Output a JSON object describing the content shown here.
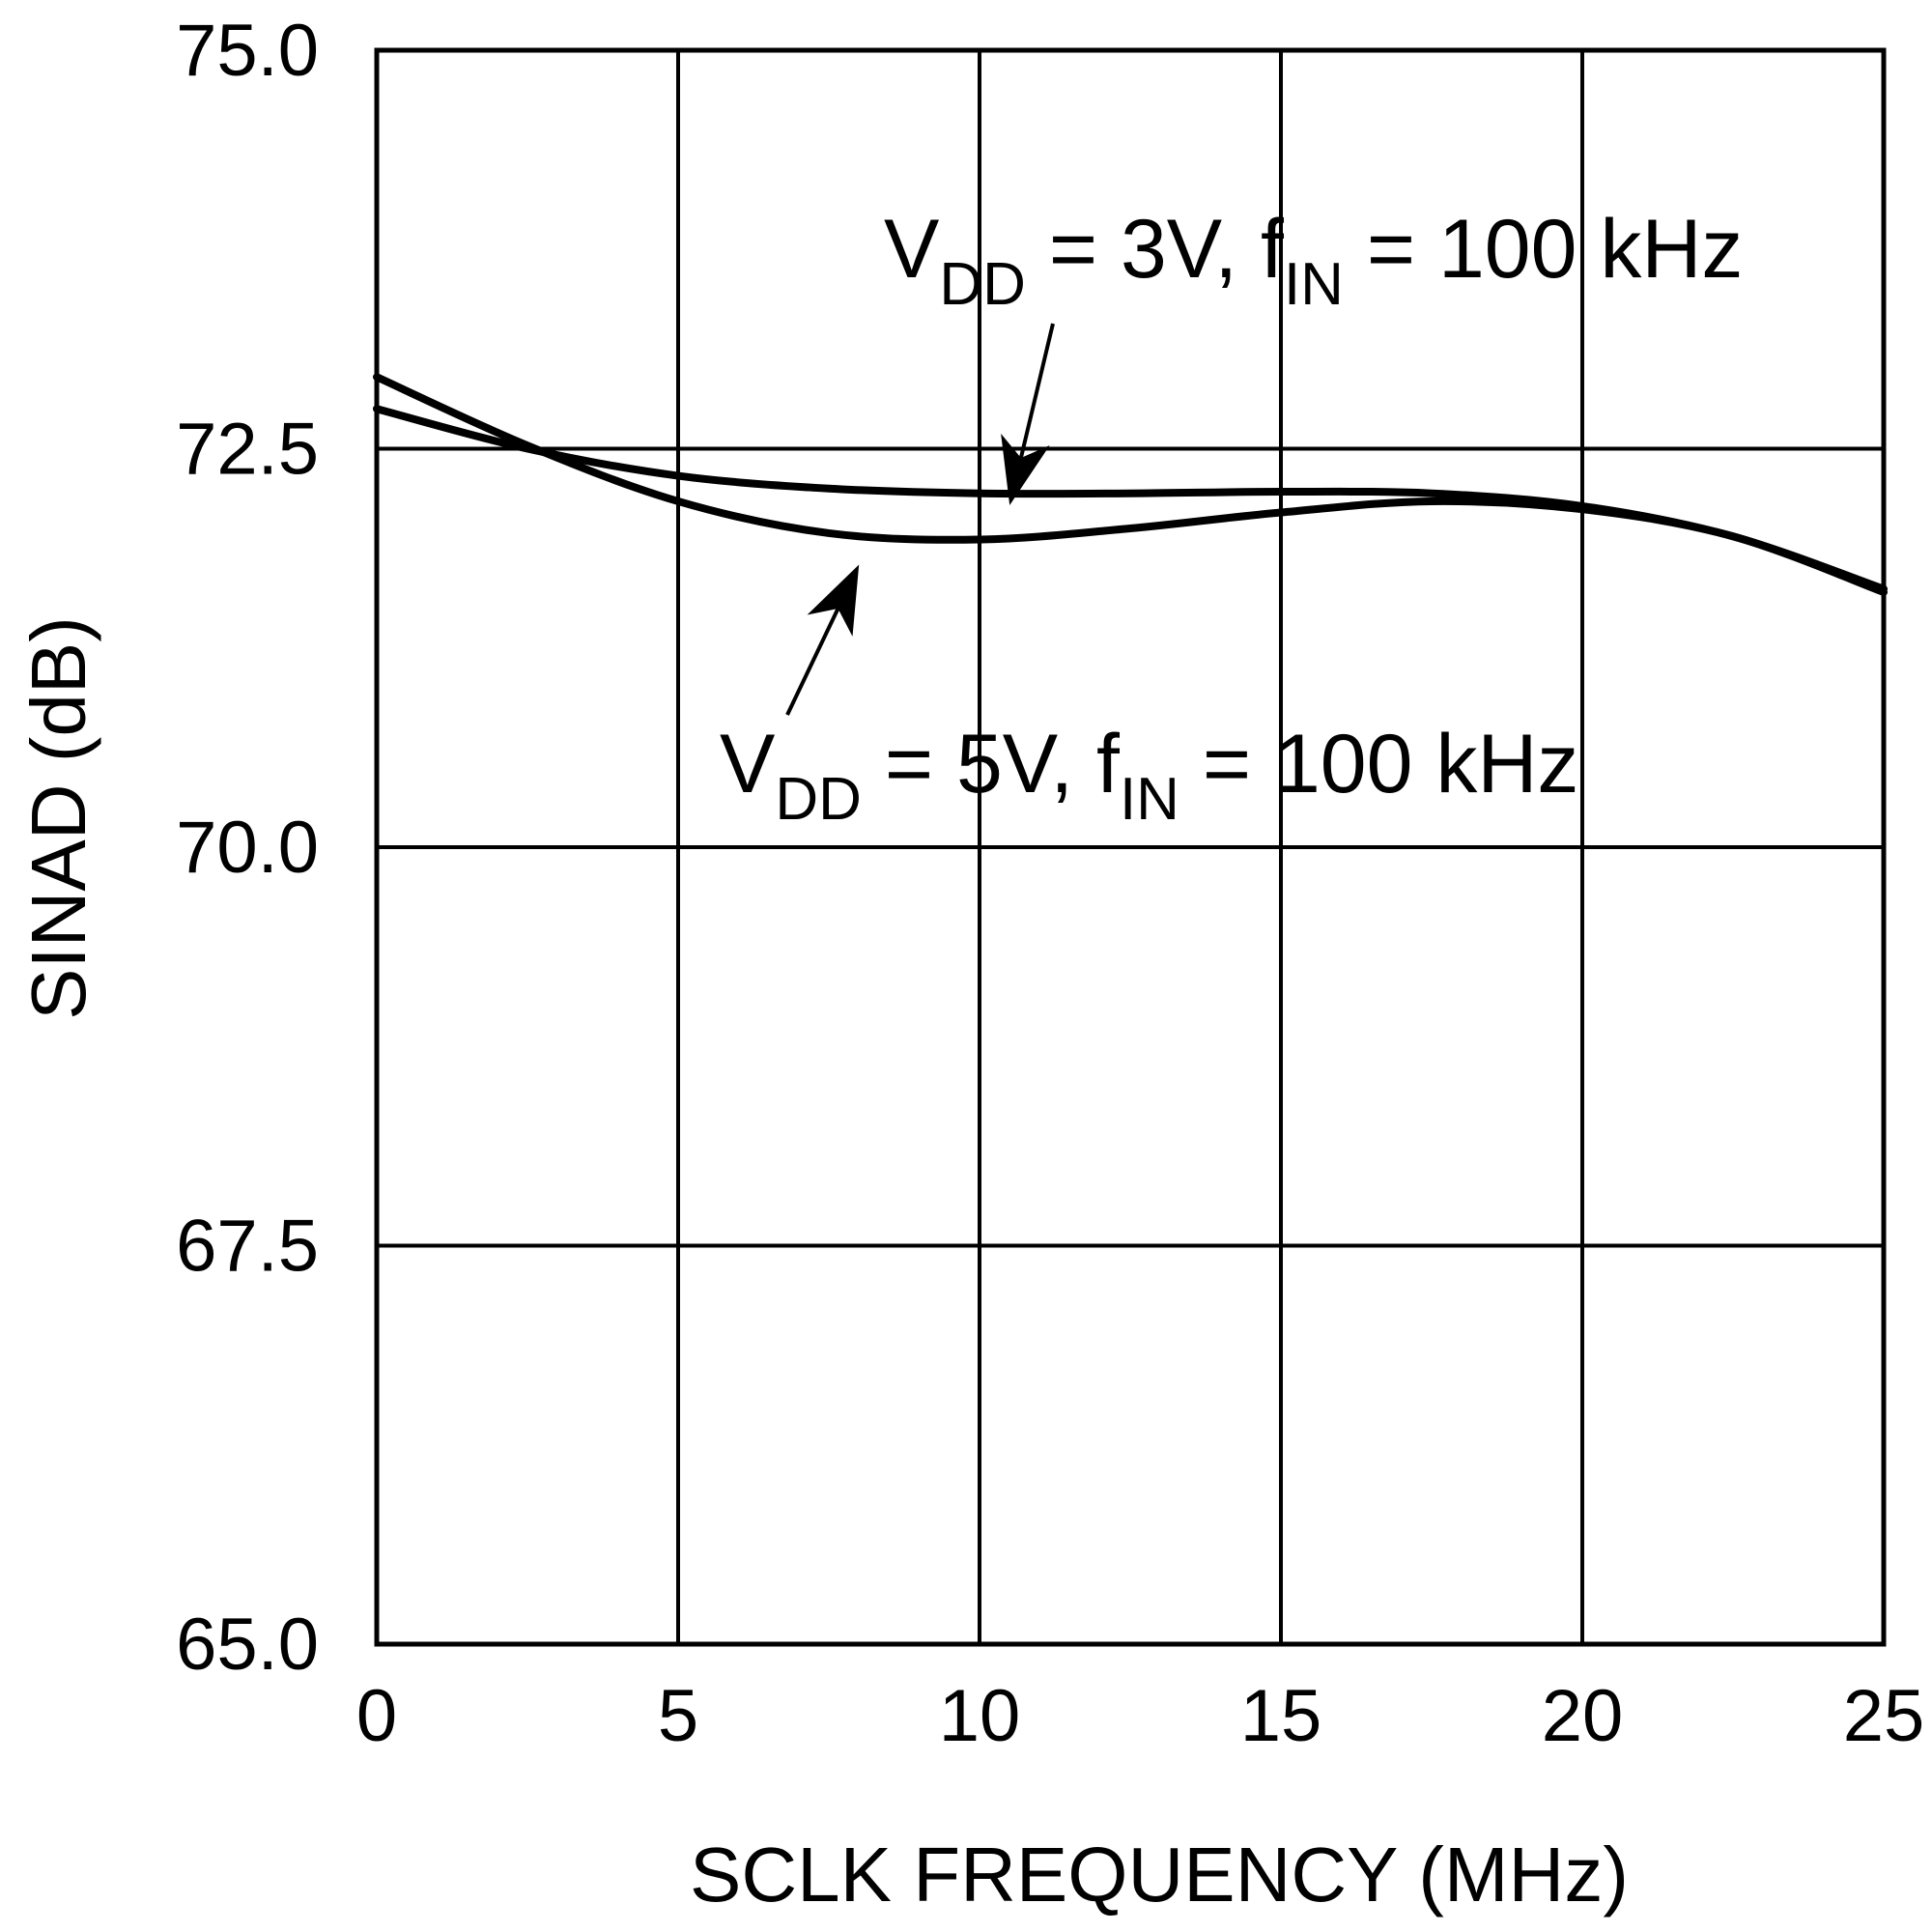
{
  "chart_data": {
    "type": "line",
    "title": "",
    "xlabel": "SCLK FREQUENCY (MHz)",
    "ylabel": "SINAD (dB)",
    "xlim": [
      0,
      25
    ],
    "ylim": [
      65.0,
      75.0
    ],
    "x_ticks": [
      0,
      5,
      10,
      15,
      20,
      25
    ],
    "x_tick_labels": [
      "0",
      "5",
      "10",
      "15",
      "20",
      "25"
    ],
    "y_ticks": [
      65.0,
      67.5,
      70.0,
      72.5,
      75.0
    ],
    "y_tick_labels": [
      "65.0",
      "67.5",
      "70.0",
      "72.5",
      "75.0"
    ],
    "grid": true,
    "series": [
      {
        "name": "VDD = 3V, fIN = 100 kHz",
        "x": [
          0,
          2.5,
          5,
          7.5,
          10,
          12.5,
          15,
          17.5,
          20,
          22.5,
          25
        ],
        "y": [
          72.75,
          72.5,
          72.33,
          72.25,
          72.22,
          72.22,
          72.23,
          72.22,
          72.14,
          71.95,
          71.62
        ]
      },
      {
        "name": "VDD = 5V, fIN = 100 kHz",
        "x": [
          0,
          2.5,
          5,
          7.5,
          10,
          12.5,
          15,
          17.5,
          20,
          22.5,
          25
        ],
        "y": [
          72.95,
          72.52,
          72.17,
          71.97,
          71.93,
          72.0,
          72.1,
          72.17,
          72.12,
          71.95,
          71.6
        ]
      }
    ],
    "annotations": [
      {
        "id": "vdd3",
        "series": "VDD = 3V, fIN = 100 kHz",
        "parts": [
          {
            "text": "V",
            "sub": false
          },
          {
            "text": "DD",
            "sub": true
          },
          {
            "text": " = 3V, f",
            "sub": false
          },
          {
            "text": "IN",
            "sub": true
          },
          {
            "text": " = 100 kHz",
            "sub": false
          }
        ],
        "points_to": [
          10.5,
          72.23
        ]
      },
      {
        "id": "vdd5",
        "series": "VDD = 5V, fIN = 100 kHz",
        "parts": [
          {
            "text": "V",
            "sub": false
          },
          {
            "text": "DD",
            "sub": true
          },
          {
            "text": " = 5V, f",
            "sub": false
          },
          {
            "text": "IN",
            "sub": true
          },
          {
            "text": " = 100 kHz",
            "sub": false
          }
        ],
        "points_to": [
          8.0,
          71.93
        ]
      }
    ]
  }
}
